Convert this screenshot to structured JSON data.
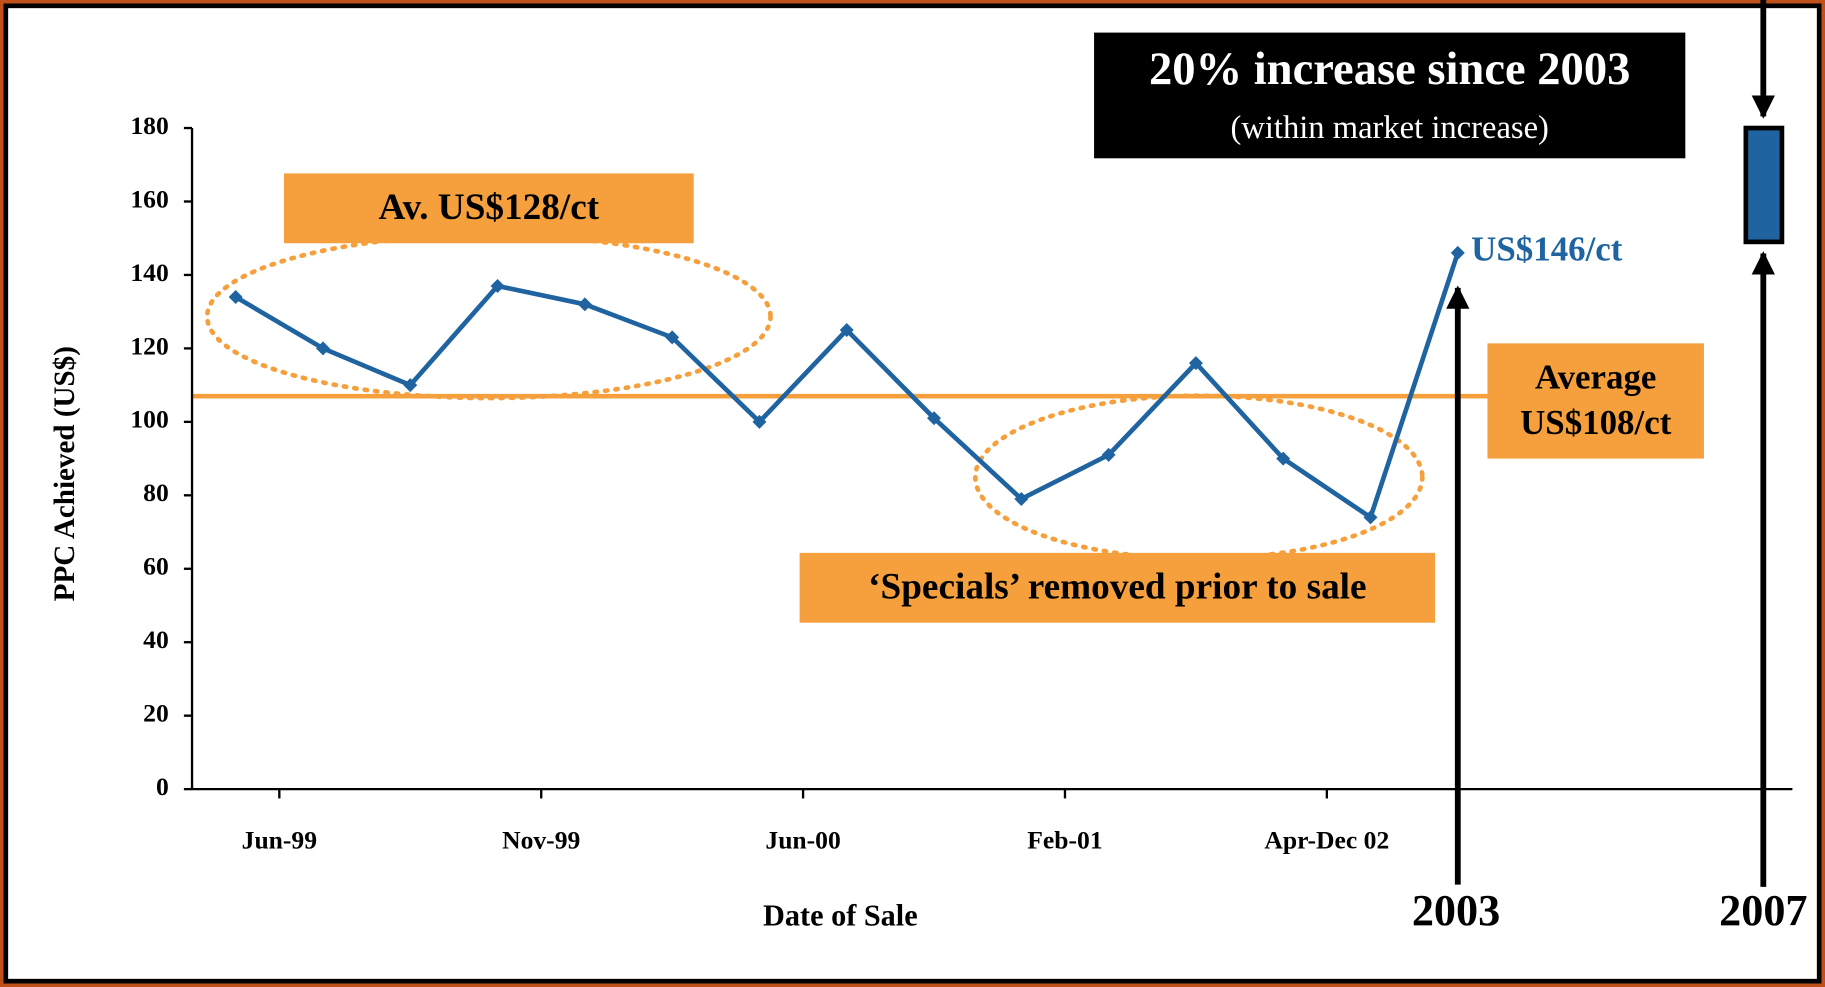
{
  "chart_data": {
    "type": "line",
    "y_label": "PPC Achieved (US$)",
    "x_label": "Date of Sale",
    "categories": [
      "Jun-99",
      null,
      null,
      "Nov-99",
      null,
      null,
      "Jun-00",
      null,
      null,
      "Feb-01",
      null,
      null,
      "Apr-Dec 02",
      null,
      null
    ],
    "series": [
      {
        "name": "PPC Achieved",
        "color": "#1f64a0",
        "values": [
          134,
          120,
          110,
          137,
          132,
          123,
          100,
          125,
          101,
          79,
          91,
          116,
          90,
          74,
          146
        ]
      }
    ],
    "ylim": [
      0,
      180
    ],
    "yticks": [
      0,
      20,
      40,
      60,
      80,
      100,
      120,
      140,
      160,
      180
    ],
    "average_line": {
      "value": 107,
      "color": "#f5a03c"
    },
    "bar_2007": {
      "low": 149,
      "high": 180,
      "color": "#1f64a0"
    },
    "annotations": {
      "increase_title": "20% increase since 2003",
      "increase_sub": "(within market increase)",
      "av_early": "Av. US$128/ct",
      "average_1": "Average",
      "average_2": "US$108/ct",
      "specials": "‘Specials’ removed prior to sale",
      "last_value": "US$146/ct",
      "year_2003": "2003",
      "year_2007": "2007"
    }
  }
}
